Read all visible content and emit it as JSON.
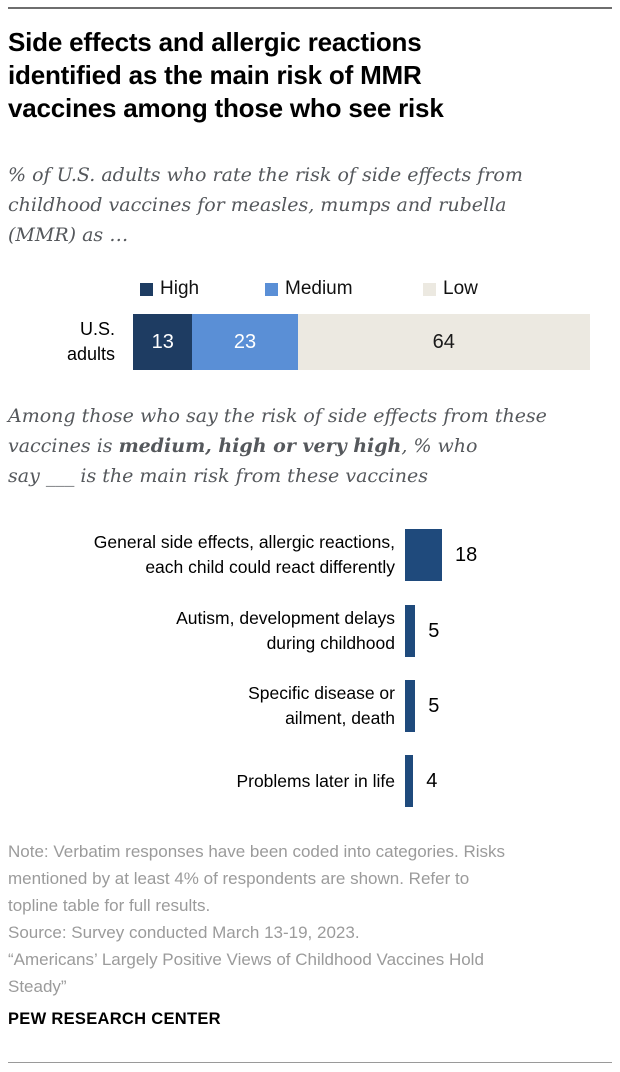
{
  "header": {
    "title": "Side effects and allergic reactions\nidentified as the main risk of MMR\nvaccines among those who see risk",
    "subtitle": "% of U.S. adults who rate the risk of side effects from\nchildhood vaccines for measles, mumps and rubella\n(MMR) as …"
  },
  "mid_subtitle": {
    "part1": "Among those who say the risk of side effects from these\nvaccines is ",
    "bold": "medium, high or very high",
    "part2": ", % who\nsay ___ is the main risk from these vaccines"
  },
  "stacked_display": {
    "row_label": "U.S.\nadults"
  },
  "bar_chart_display": {
    "rows": [
      {
        "label": "General side effects, allergic reactions,\neach child could react differently"
      },
      {
        "label": "Autism, development delays\nduring childhood"
      },
      {
        "label": "Specific disease or\nailment, death"
      },
      {
        "label": "Problems later in life"
      }
    ]
  },
  "footer": {
    "note": "Note: Verbatim responses have been coded into categories. Risks\nmentioned by at least 4% of respondents are shown. Refer to\ntopline table for full results.",
    "source": "Source: Survey conducted March 13-19, 2023.",
    "quote": "“Americans’ Largely Positive Views of Childhood Vaccines Hold\nSteady”",
    "brand": "PEW RESEARCH CENTER"
  },
  "colors": {
    "high": "#1E3C62",
    "medium": "#5A8FD6",
    "low": "#ECE9E1",
    "category_bar": "#1F4A7C",
    "subtitle_text": "#55585C",
    "note_text": "#9B9B9B"
  },
  "chart_data": [
    {
      "type": "bar",
      "subtype": "stacked-horizontal",
      "title": "% of U.S. adults who rate the risk of side effects from childhood vaccines for measles, mumps and rubella (MMR) as …",
      "categories": [
        "U.S. adults"
      ],
      "series": [
        {
          "name": "High",
          "values": [
            13
          ],
          "color": "#1E3C62",
          "label_color": "#FFFFFF"
        },
        {
          "name": "Medium",
          "values": [
            23
          ],
          "color": "#5A8FD6",
          "label_color": "#FFFFFF"
        },
        {
          "name": "Low",
          "values": [
            64
          ],
          "color": "#ECE9E1",
          "label_color": "#1A1A1A"
        }
      ],
      "xlim": [
        0,
        100
      ],
      "legend_position": "top",
      "grid": false,
      "data_labels": true
    },
    {
      "type": "bar",
      "subtype": "horizontal",
      "title": "Among those who say the risk of side effects from these vaccines is medium, high or very high, % who say ___ is the main risk from these vaccines",
      "categories": [
        "General side effects, allergic reactions, each child could react differently",
        "Autism, development delays during childhood",
        "Specific disease or ailment, death",
        "Problems later in life"
      ],
      "values": [
        18,
        5,
        5,
        4
      ],
      "color": "#1F4A7C",
      "xlim": [
        0,
        100
      ],
      "grid": false,
      "data_labels": true
    }
  ]
}
